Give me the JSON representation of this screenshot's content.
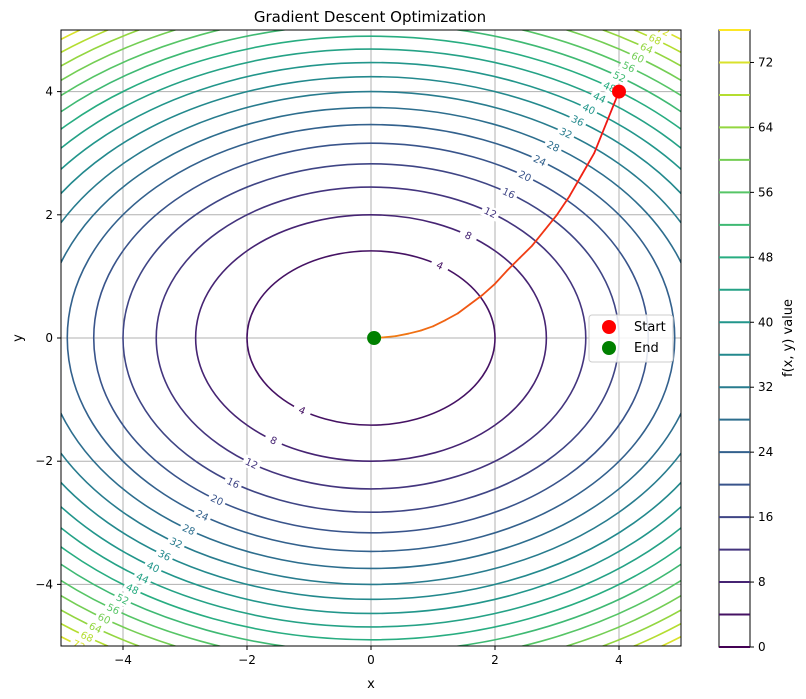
{
  "chart_data": {
    "type": "contour",
    "title": "Gradient Descent Optimization",
    "xlabel": "x",
    "ylabel": "y",
    "xlim": [
      -5,
      5
    ],
    "ylim": [
      -5,
      5
    ],
    "grid": true,
    "function": "f(x, y) = x^2 + 2*y^2",
    "contour_levels": [
      4,
      8,
      12,
      16,
      20,
      24,
      28,
      32,
      36,
      40,
      44,
      48,
      52,
      56,
      60,
      64,
      68,
      72
    ],
    "x_ticks": [
      -4,
      -2,
      0,
      2,
      4
    ],
    "x_tick_labels": [
      "−4",
      "−2",
      "0",
      "2",
      "4"
    ],
    "y_ticks": [
      -4,
      -2,
      0,
      2,
      4
    ],
    "y_tick_labels": [
      "−4",
      "−2",
      "0",
      "2",
      "4"
    ],
    "path": {
      "x": [
        4.0,
        3.8,
        3.6,
        3.4,
        3.2,
        3.0,
        2.8,
        2.6,
        2.4,
        2.2,
        2.0,
        1.8,
        1.6,
        1.4,
        1.2,
        1.0,
        0.8,
        0.6,
        0.4,
        0.2,
        0.05
      ],
      "y": [
        4.0,
        3.5,
        3.0,
        2.65,
        2.3,
        2.0,
        1.75,
        1.5,
        1.3,
        1.1,
        0.88,
        0.7,
        0.55,
        0.4,
        0.29,
        0.19,
        0.12,
        0.07,
        0.03,
        0.01,
        0.0
      ]
    },
    "start": {
      "x": 4.0,
      "y": 4.0,
      "label": "Start",
      "color": "#ff0000"
    },
    "end": {
      "x": 0.05,
      "y": 0.0,
      "label": "End",
      "color": "#008000"
    },
    "legend": {
      "placement": "center-right",
      "entries": [
        "Start",
        "End"
      ]
    },
    "colorbar": {
      "label": "f(x, y) value",
      "range": [
        0,
        76
      ],
      "ticks": [
        0,
        8,
        16,
        24,
        32,
        40,
        48,
        56,
        64,
        72
      ],
      "tick_labels": [
        "0",
        "8",
        "16",
        "24",
        "32",
        "40",
        "48",
        "56",
        "64",
        "72"
      ],
      "levels": [
        0,
        4,
        8,
        12,
        16,
        20,
        24,
        28,
        32,
        36,
        40,
        44,
        48,
        52,
        56,
        60,
        64,
        68,
        72,
        76
      ]
    },
    "colormap": "viridis"
  }
}
